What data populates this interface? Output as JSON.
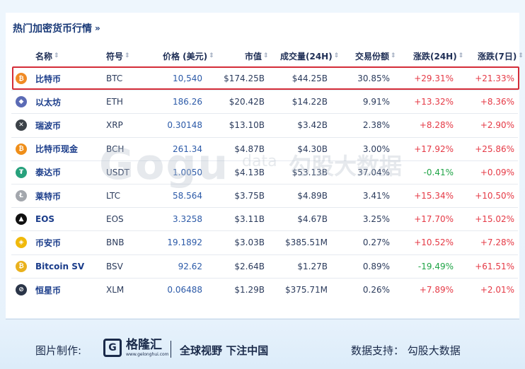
{
  "section_title": "热门加密货币行情",
  "section_chevron": "»",
  "columns": {
    "name": "名称",
    "symbol": "符号",
    "price": "价格 (美元)",
    "market_cap": "市值",
    "volume": "成交量(24H)",
    "share": "交易份额",
    "change_24h": "涨跌(24H)",
    "change_7d": "涨跌(7日)",
    "sort_glyph": "⇕"
  },
  "rows": [
    {
      "name": "比特币",
      "symbol": "BTC",
      "price": "10,540",
      "market_cap": "$174.25B",
      "volume": "$44.25B",
      "share": "30.85%",
      "change_24h": "+29.31%",
      "change_7d": "+21.33%",
      "icon": "btc-icon",
      "icon_glyph": "₿",
      "icon_color": "#f08a24",
      "dir24": "up",
      "dir7": "up"
    },
    {
      "name": "以太坊",
      "symbol": "ETH",
      "price": "186.26",
      "market_cap": "$20.42B",
      "volume": "$14.22B",
      "share": "9.91%",
      "change_24h": "+13.32%",
      "change_7d": "+8.36%",
      "icon": "eth-icon",
      "icon_glyph": "◆",
      "icon_color": "#5b6bb5",
      "dir24": "up",
      "dir7": "up"
    },
    {
      "name": "瑞波币",
      "symbol": "XRP",
      "price": "0.30148",
      "market_cap": "$13.10B",
      "volume": "$3.42B",
      "share": "2.38%",
      "change_24h": "+8.28%",
      "change_7d": "+2.90%",
      "icon": "xrp-icon",
      "icon_glyph": "✕",
      "icon_color": "#3c4248",
      "dir24": "up",
      "dir7": "up"
    },
    {
      "name": "比特币现金",
      "symbol": "BCH",
      "price": "261.34",
      "market_cap": "$4.87B",
      "volume": "$4.30B",
      "share": "3.00%",
      "change_24h": "+17.92%",
      "change_7d": "+25.86%",
      "icon": "bch-icon",
      "icon_glyph": "₿",
      "icon_color": "#ef8e19",
      "dir24": "up",
      "dir7": "up"
    },
    {
      "name": "泰达币",
      "symbol": "USDT",
      "price": "1.0050",
      "market_cap": "$4.13B",
      "volume": "$53.13B",
      "share": "37.04%",
      "change_24h": "-0.41%",
      "change_7d": "+0.09%",
      "icon": "usdt-icon",
      "icon_glyph": "₮",
      "icon_color": "#27a17c",
      "dir24": "down",
      "dir7": "up"
    },
    {
      "name": "莱特币",
      "symbol": "LTC",
      "price": "58.564",
      "market_cap": "$3.75B",
      "volume": "$4.89B",
      "share": "3.41%",
      "change_24h": "+15.34%",
      "change_7d": "+10.50%",
      "icon": "ltc-icon",
      "icon_glyph": "Ł",
      "icon_color": "#a3a7ad",
      "dir24": "up",
      "dir7": "up"
    },
    {
      "name": "EOS",
      "symbol": "EOS",
      "price": "3.3258",
      "market_cap": "$3.11B",
      "volume": "$4.67B",
      "share": "3.25%",
      "change_24h": "+17.70%",
      "change_7d": "+15.02%",
      "icon": "eos-icon",
      "icon_glyph": "▲",
      "icon_color": "#101010",
      "dir24": "up",
      "dir7": "up"
    },
    {
      "name": "币安币",
      "symbol": "BNB",
      "price": "19.1892",
      "market_cap": "$3.03B",
      "volume": "$385.51M",
      "share": "0.27%",
      "change_24h": "+10.52%",
      "change_7d": "+7.28%",
      "icon": "bnb-icon",
      "icon_glyph": "◈",
      "icon_color": "#f0b90b",
      "dir24": "up",
      "dir7": "up"
    },
    {
      "name": "Bitcoin SV",
      "symbol": "BSV",
      "price": "92.62",
      "market_cap": "$2.64B",
      "volume": "$1.27B",
      "share": "0.89%",
      "change_24h": "-19.49%",
      "change_7d": "+61.51%",
      "icon": "bsv-icon",
      "icon_glyph": "₿",
      "icon_color": "#e9b11d",
      "dir24": "down",
      "dir7": "up"
    },
    {
      "name": "恒星币",
      "symbol": "XLM",
      "price": "0.06488",
      "market_cap": "$1.29B",
      "volume": "$375.71M",
      "share": "0.26%",
      "change_24h": "+7.89%",
      "change_7d": "+2.01%",
      "icon": "xlm-icon",
      "icon_glyph": "⊘",
      "icon_color": "#2a3548",
      "dir24": "up",
      "dir7": "up"
    }
  ],
  "watermark": {
    "logo": "Gogu",
    "data": "data",
    "cn": "勾股大数据"
  },
  "footer": {
    "label": "图片制作:",
    "logo_mark": "G",
    "logo_cn": "格隆汇",
    "logo_url": "www.gelonghui.com",
    "slogan": "全球视野 下注中国",
    "support": "数据支持： 勾股大数据"
  },
  "colors": {
    "up": "#e53945",
    "down": "#1fa446",
    "highlight": "#d42c38",
    "title": "#1a3a78"
  }
}
